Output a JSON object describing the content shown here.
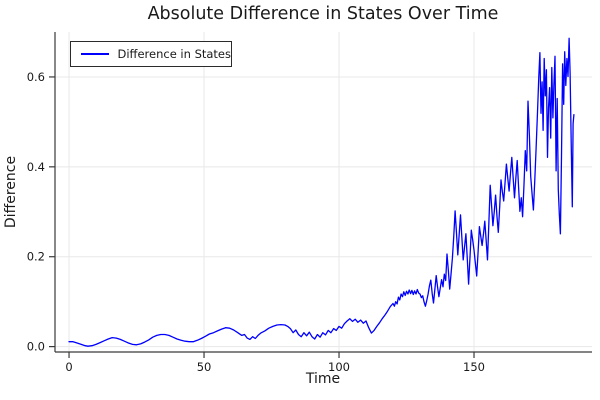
{
  "colors": {
    "line": "#0000ff",
    "grid": "#e8e8e8",
    "axis": "#3a3a3a",
    "text": "#1a1a1a",
    "background": "#ffffff"
  },
  "chart_data": {
    "type": "line",
    "title": "Absolute Difference in States Over Time",
    "xlabel": "Time",
    "ylabel": "Difference",
    "xlim": [
      -5.2,
      193.7
    ],
    "ylim": [
      -0.012,
      0.7
    ],
    "grid": true,
    "legend": {
      "position": "top-left",
      "entries": [
        {
          "label": "Difference in States",
          "color": "#0000ff"
        }
      ]
    },
    "xticks": {
      "values": [
        0,
        50,
        100,
        150
      ],
      "labels": [
        "0",
        "50",
        "100",
        "150"
      ]
    },
    "yticks": {
      "values": [
        0.0,
        0.2,
        0.4,
        0.6
      ],
      "labels": [
        "0.0",
        "0.2",
        "0.4",
        "0.6"
      ]
    },
    "series": [
      {
        "name": "Difference in States",
        "color": "#0000ff",
        "points": [
          [
            0,
            0.011
          ],
          [
            1.5,
            0.011
          ],
          [
            3,
            0.008
          ],
          [
            4.5,
            0.005
          ],
          [
            6,
            0.002
          ],
          [
            7,
            0.001
          ],
          [
            8.5,
            0.002
          ],
          [
            10,
            0.005
          ],
          [
            11.5,
            0.009
          ],
          [
            13,
            0.013
          ],
          [
            14.5,
            0.017
          ],
          [
            16,
            0.02
          ],
          [
            17.5,
            0.019
          ],
          [
            19,
            0.016
          ],
          [
            20.5,
            0.012
          ],
          [
            22,
            0.008
          ],
          [
            23.5,
            0.005
          ],
          [
            25,
            0.004
          ],
          [
            26.5,
            0.006
          ],
          [
            28,
            0.01
          ],
          [
            29.5,
            0.015
          ],
          [
            31,
            0.021
          ],
          [
            32.5,
            0.025
          ],
          [
            34,
            0.027
          ],
          [
            35.5,
            0.027
          ],
          [
            37,
            0.025
          ],
          [
            38.5,
            0.021
          ],
          [
            40,
            0.017
          ],
          [
            41.5,
            0.014
          ],
          [
            43,
            0.012
          ],
          [
            44.5,
            0.011
          ],
          [
            46,
            0.011
          ],
          [
            47.5,
            0.014
          ],
          [
            49,
            0.018
          ],
          [
            50.5,
            0.023
          ],
          [
            52,
            0.028
          ],
          [
            53.5,
            0.031
          ],
          [
            55,
            0.035
          ],
          [
            56.5,
            0.039
          ],
          [
            58,
            0.042
          ],
          [
            59.5,
            0.041
          ],
          [
            61,
            0.037
          ],
          [
            62.5,
            0.031
          ],
          [
            64,
            0.025
          ],
          [
            65,
            0.027
          ],
          [
            66,
            0.019
          ],
          [
            67,
            0.016
          ],
          [
            68,
            0.022
          ],
          [
            69,
            0.018
          ],
          [
            70,
            0.025
          ],
          [
            71,
            0.03
          ],
          [
            72.5,
            0.035
          ],
          [
            74,
            0.041
          ],
          [
            75.5,
            0.045
          ],
          [
            77,
            0.048
          ],
          [
            78.5,
            0.049
          ],
          [
            80,
            0.048
          ],
          [
            81,
            0.045
          ],
          [
            82,
            0.04
          ],
          [
            83,
            0.031
          ],
          [
            84,
            0.037
          ],
          [
            85,
            0.027
          ],
          [
            86,
            0.022
          ],
          [
            87,
            0.031
          ],
          [
            88,
            0.024
          ],
          [
            89,
            0.032
          ],
          [
            90,
            0.022
          ],
          [
            91,
            0.017
          ],
          [
            92,
            0.027
          ],
          [
            93,
            0.021
          ],
          [
            94,
            0.031
          ],
          [
            95,
            0.026
          ],
          [
            96,
            0.036
          ],
          [
            97,
            0.031
          ],
          [
            98,
            0.04
          ],
          [
            99,
            0.036
          ],
          [
            100,
            0.045
          ],
          [
            101,
            0.041
          ],
          [
            102,
            0.051
          ],
          [
            103,
            0.057
          ],
          [
            104,
            0.062
          ],
          [
            105,
            0.056
          ],
          [
            106,
            0.061
          ],
          [
            107,
            0.054
          ],
          [
            108,
            0.059
          ],
          [
            109,
            0.052
          ],
          [
            110,
            0.057
          ],
          [
            111,
            0.042
          ],
          [
            112,
            0.03
          ],
          [
            113,
            0.036
          ],
          [
            114,
            0.045
          ],
          [
            115,
            0.053
          ],
          [
            116,
            0.062
          ],
          [
            117,
            0.07
          ],
          [
            118,
            0.079
          ],
          [
            119,
            0.089
          ],
          [
            120,
            0.096
          ],
          [
            120.5,
            0.09
          ],
          [
            121,
            0.1
          ],
          [
            121.5,
            0.095
          ],
          [
            122,
            0.11
          ],
          [
            122.5,
            0.104
          ],
          [
            123,
            0.117
          ],
          [
            123.5,
            0.111
          ],
          [
            124,
            0.122
          ],
          [
            124.5,
            0.114
          ],
          [
            125,
            0.123
          ],
          [
            125.5,
            0.117
          ],
          [
            126,
            0.126
          ],
          [
            126.5,
            0.118
          ],
          [
            127,
            0.125
          ],
          [
            127.5,
            0.116
          ],
          [
            128,
            0.124
          ],
          [
            128.5,
            0.117
          ],
          [
            129,
            0.127
          ],
          [
            129.5,
            0.119
          ],
          [
            130,
            0.117
          ],
          [
            130.5,
            0.109
          ],
          [
            131,
            0.113
          ],
          [
            131.5,
            0.099
          ],
          [
            132,
            0.09
          ],
          [
            132.5,
            0.103
          ],
          [
            133,
            0.117
          ],
          [
            133.5,
            0.136
          ],
          [
            134,
            0.148
          ],
          [
            134.5,
            0.118
          ],
          [
            135,
            0.097
          ],
          [
            135.5,
            0.128
          ],
          [
            136,
            0.158
          ],
          [
            136.5,
            0.132
          ],
          [
            137,
            0.111
          ],
          [
            137.5,
            0.131
          ],
          [
            138,
            0.149
          ],
          [
            138.5,
            0.133
          ],
          [
            139,
            0.161
          ],
          [
            139.5,
            0.147
          ],
          [
            140,
            0.206
          ],
          [
            140.5,
            0.168
          ],
          [
            141,
            0.128
          ],
          [
            141.5,
            0.163
          ],
          [
            142,
            0.197
          ],
          [
            142.5,
            0.247
          ],
          [
            143,
            0.302
          ],
          [
            143.5,
            0.252
          ],
          [
            144,
            0.204
          ],
          [
            144.5,
            0.25
          ],
          [
            145,
            0.293
          ],
          [
            145.5,
            0.241
          ],
          [
            146,
            0.193
          ],
          [
            146.5,
            0.223
          ],
          [
            147,
            0.251
          ],
          [
            147.5,
            0.195
          ],
          [
            148,
            0.139
          ],
          [
            148.5,
            0.199
          ],
          [
            149,
            0.259
          ],
          [
            149.5,
            0.237
          ],
          [
            150,
            0.215
          ],
          [
            150.5,
            0.185
          ],
          [
            151,
            0.157
          ],
          [
            151.5,
            0.211
          ],
          [
            152,
            0.267
          ],
          [
            152.5,
            0.245
          ],
          [
            153,
            0.225
          ],
          [
            153.5,
            0.251
          ],
          [
            154,
            0.279
          ],
          [
            154.5,
            0.235
          ],
          [
            155,
            0.193
          ],
          [
            155.5,
            0.277
          ],
          [
            156,
            0.359
          ],
          [
            156.5,
            0.313
          ],
          [
            157,
            0.269
          ],
          [
            157.5,
            0.301
          ],
          [
            158,
            0.337
          ],
          [
            158.5,
            0.289
          ],
          [
            159,
            0.254
          ],
          [
            159.5,
            0.311
          ],
          [
            160,
            0.371
          ],
          [
            160.5,
            0.344
          ],
          [
            161,
            0.324
          ],
          [
            161.5,
            0.366
          ],
          [
            162,
            0.406
          ],
          [
            162.5,
            0.374
          ],
          [
            163,
            0.346
          ],
          [
            163.5,
            0.386
          ],
          [
            164,
            0.421
          ],
          [
            164.5,
            0.374
          ],
          [
            165,
            0.331
          ],
          [
            165.5,
            0.376
          ],
          [
            166,
            0.414
          ],
          [
            166.5,
            0.354
          ],
          [
            167,
            0.301
          ],
          [
            167.5,
            0.331
          ],
          [
            168,
            0.289
          ],
          [
            168.5,
            0.361
          ],
          [
            169,
            0.436
          ],
          [
            169.5,
            0.391
          ],
          [
            170,
            0.546
          ],
          [
            170.5,
            0.469
          ],
          [
            171,
            0.379
          ],
          [
            171.5,
            0.339
          ],
          [
            172,
            0.304
          ],
          [
            172.5,
            0.371
          ],
          [
            173,
            0.441
          ],
          [
            173.5,
            0.521
          ],
          [
            174,
            0.601
          ],
          [
            174.4,
            0.654
          ],
          [
            174.8,
            0.519
          ],
          [
            175.2,
            0.589
          ],
          [
            175.6,
            0.481
          ],
          [
            176,
            0.641
          ],
          [
            176.4,
            0.558
          ],
          [
            176.8,
            0.616
          ],
          [
            177.2,
            0.421
          ],
          [
            177.6,
            0.531
          ],
          [
            178,
            0.576
          ],
          [
            178.4,
            0.464
          ],
          [
            178.8,
            0.621
          ],
          [
            179.2,
            0.509
          ],
          [
            179.6,
            0.582
          ],
          [
            180,
            0.646
          ],
          [
            180.4,
            0.391
          ],
          [
            180.8,
            0.552
          ],
          [
            181.2,
            0.349
          ],
          [
            181.6,
            0.296
          ],
          [
            182,
            0.251
          ],
          [
            182.4,
            0.424
          ],
          [
            182.8,
            0.629
          ],
          [
            183.2,
            0.539
          ],
          [
            183.6,
            0.656
          ],
          [
            184,
            0.581
          ],
          [
            184.4,
            0.641
          ],
          [
            184.8,
            0.601
          ],
          [
            185.2,
            0.686
          ],
          [
            185.6,
            0.609
          ],
          [
            186,
            0.454
          ],
          [
            186.4,
            0.311
          ],
          [
            186.7,
            0.496
          ],
          [
            187,
            0.516
          ]
        ]
      }
    ]
  }
}
